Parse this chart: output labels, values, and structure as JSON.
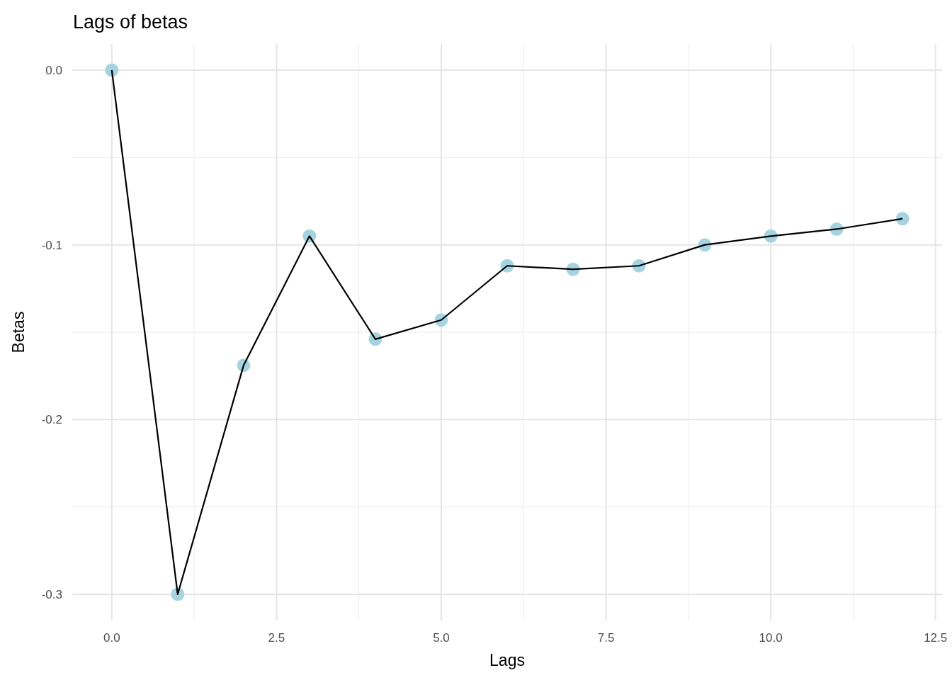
{
  "chart_data": {
    "type": "line",
    "title": "Lags of betas",
    "xlabel": "Lags",
    "ylabel": "Betas",
    "x": [
      0,
      1,
      2,
      3,
      4,
      5,
      6,
      7,
      8,
      9,
      10,
      11,
      12
    ],
    "series": [
      {
        "type": "scatter",
        "color": "#a6d3e2",
        "marker": "circle",
        "values": [
          0,
          -0.3,
          -0.169,
          -0.095,
          -0.154,
          -0.143,
          -0.112,
          -0.114,
          -0.112,
          -0.1,
          -0.095,
          -0.091,
          -0.085
        ]
      },
      {
        "color": "#000000",
        "marker": "none",
        "line_style": "solid",
        "values": [
          0,
          -0.3,
          -0.169,
          -0.095,
          -0.154,
          -0.143,
          -0.112,
          -0.114,
          -0.112,
          -0.1,
          -0.095,
          -0.091,
          -0.085
        ]
      }
    ],
    "xlim": [
      -0.6,
      12.6
    ],
    "xticks": [
      {
        "value": 0,
        "label": "0.0"
      },
      {
        "value": 2.5,
        "label": "2.5"
      },
      {
        "value": 5,
        "label": "5.0"
      },
      {
        "value": 7.5,
        "label": "7.5"
      },
      {
        "value": 10,
        "label": "10.0"
      },
      {
        "value": 12.5,
        "label": "12.5"
      }
    ],
    "ylim": [
      -0.315,
      0.015
    ],
    "yticks": [
      {
        "value": 0,
        "label": "0.0"
      },
      {
        "value": -0.1,
        "label": "-0.1"
      },
      {
        "value": -0.2,
        "label": "-0.2"
      },
      {
        "value": -0.3,
        "label": "-0.3"
      }
    ],
    "grid": true
  }
}
